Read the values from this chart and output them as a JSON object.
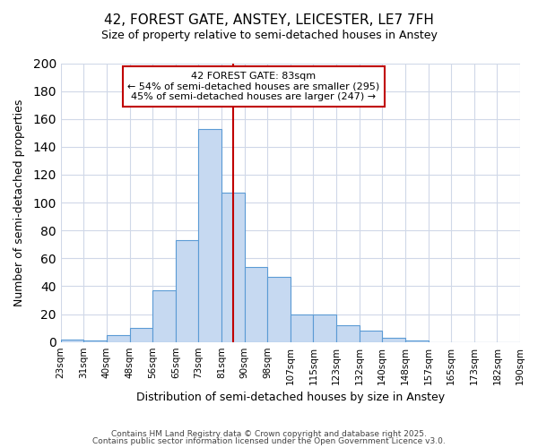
{
  "title": "42, FOREST GATE, ANSTEY, LEICESTER, LE7 7FH",
  "subtitle": "Size of property relative to semi-detached houses in Anstey",
  "xlabel": "Distribution of semi-detached houses by size in Anstey",
  "ylabel": "Number of semi-detached properties",
  "bin_labels": [
    "23sqm",
    "31sqm",
    "40sqm",
    "48sqm",
    "56sqm",
    "65sqm",
    "73sqm",
    "81sqm",
    "90sqm",
    "98sqm",
    "107sqm",
    "115sqm",
    "123sqm",
    "132sqm",
    "140sqm",
    "148sqm",
    "157sqm",
    "165sqm",
    "173sqm",
    "182sqm",
    "190sqm"
  ],
  "bar_values": [
    2,
    1,
    5,
    10,
    37,
    73,
    153,
    107,
    54,
    47,
    20,
    20,
    12,
    8,
    3,
    1,
    0,
    0,
    0,
    0
  ],
  "bar_color": "#c6d9f1",
  "bar_edge_color": "#5b9bd5",
  "grid_color": "#d0d8e8",
  "background_color": "#ffffff",
  "vline_x": 7.5,
  "vline_color": "#c00000",
  "annotation_title": "42 FOREST GATE: 83sqm",
  "annotation_line1": "← 54% of semi-detached houses are smaller (295)",
  "annotation_line2": "45% of semi-detached houses are larger (247) →",
  "annotation_box_color": "#ffffff",
  "annotation_box_edge": "#c00000",
  "ylim": [
    0,
    200
  ],
  "yticks": [
    0,
    20,
    40,
    60,
    80,
    100,
    120,
    140,
    160,
    180,
    200
  ],
  "footer1": "Contains HM Land Registry data © Crown copyright and database right 2025.",
  "footer2": "Contains public sector information licensed under the Open Government Licence v3.0."
}
